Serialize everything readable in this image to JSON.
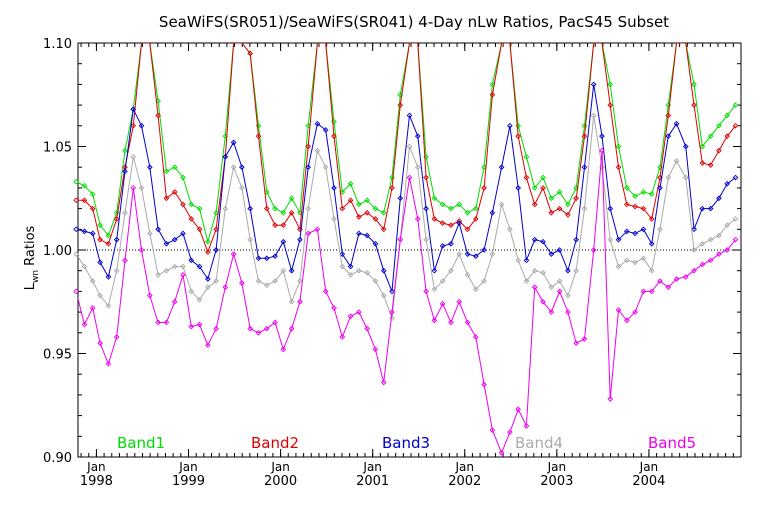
{
  "chart_data": {
    "type": "line",
    "title": "SeaWiFS(SR051)/SeaWiFS(SR041) 4-Day nLw Ratios, PacS45 Subset",
    "ylabel": "L",
    "ylabel_sub": "wn",
    "ylabel_rest": " Ratios",
    "xlabel": "",
    "xlim": [
      1997.8,
      2005.0
    ],
    "ylim": [
      0.9,
      1.1
    ],
    "y_ticks": [
      "0.90",
      "0.95",
      "1.00",
      "1.05",
      "1.10"
    ],
    "y_tick_values": [
      0.9,
      0.95,
      1.0,
      1.05,
      1.1
    ],
    "x_ticks": [
      {
        "month": "Jan",
        "year": "1998",
        "value": 1998.0
      },
      {
        "month": "Jan",
        "year": "1999",
        "value": 1999.0
      },
      {
        "month": "Jan",
        "year": "2000",
        "value": 2000.0
      },
      {
        "month": "Jan",
        "year": "2001",
        "value": 2001.0
      },
      {
        "month": "Jan",
        "year": "2002",
        "value": 2002.0
      },
      {
        "month": "Jan",
        "year": "2003",
        "value": 2003.0
      },
      {
        "month": "Jan",
        "year": "2004",
        "value": 2004.0
      }
    ],
    "reference_line": 1.0,
    "grid": false,
    "legend_placement": "bottom",
    "series": [
      {
        "name": "Band1",
        "color": "#00dd00",
        "x": [
          1997.78,
          1997.87,
          1997.96,
          1998.04,
          1998.13,
          1998.22,
          1998.31,
          1998.4,
          1998.49,
          1998.58,
          1998.67,
          1998.76,
          1998.85,
          1998.94,
          1999.03,
          1999.12,
          1999.21,
          1999.3,
          1999.4,
          1999.49,
          1999.58,
          1999.67,
          1999.76,
          1999.85,
          1999.94,
          2000.03,
          2000.12,
          2000.21,
          2000.3,
          2000.4,
          2000.49,
          2000.58,
          2000.67,
          2000.76,
          2000.85,
          2000.94,
          2001.03,
          2001.12,
          2001.21,
          2001.3,
          2001.4,
          2001.49,
          2001.58,
          2001.67,
          2001.76,
          2001.85,
          2001.94,
          2002.03,
          2002.12,
          2002.21,
          2002.3,
          2002.4,
          2002.49,
          2002.58,
          2002.67,
          2002.76,
          2002.85,
          2002.94,
          2003.03,
          2003.12,
          2003.21,
          2003.3,
          2003.4,
          2003.49,
          2003.58,
          2003.67,
          2003.76,
          2003.85,
          2003.94,
          2004.03,
          2004.12,
          2004.21,
          2004.3,
          2004.4,
          2004.49,
          2004.58,
          2004.67,
          2004.76,
          2004.85,
          2004.94
        ],
        "values": [
          1.033,
          1.031,
          1.027,
          1.012,
          1.007,
          1.018,
          1.048,
          1.068,
          1.1,
          1.1,
          1.072,
          1.038,
          1.04,
          1.035,
          1.022,
          1.02,
          1.004,
          1.018,
          1.055,
          1.1,
          1.1,
          1.095,
          1.06,
          1.028,
          1.02,
          1.018,
          1.025,
          1.018,
          1.06,
          1.1,
          1.1,
          1.062,
          1.028,
          1.032,
          1.022,
          1.024,
          1.02,
          1.018,
          1.035,
          1.075,
          1.1,
          1.1,
          1.045,
          1.025,
          1.022,
          1.02,
          1.022,
          1.018,
          1.02,
          1.04,
          1.08,
          1.1,
          1.1,
          1.06,
          1.045,
          1.03,
          1.035,
          1.025,
          1.028,
          1.022,
          1.03,
          1.06,
          1.1,
          1.1,
          1.08,
          1.05,
          1.03,
          1.026,
          1.028,
          1.027,
          1.04,
          1.07,
          1.1,
          1.1,
          1.08,
          1.05,
          1.055,
          1.06,
          1.065,
          1.07
        ]
      },
      {
        "name": "Band2",
        "color": "#dd0000",
        "x": [
          1997.78,
          1997.87,
          1997.96,
          1998.04,
          1998.13,
          1998.22,
          1998.31,
          1998.4,
          1998.49,
          1998.58,
          1998.67,
          1998.76,
          1998.85,
          1998.94,
          1999.03,
          1999.12,
          1999.21,
          1999.3,
          1999.4,
          1999.49,
          1999.58,
          1999.67,
          1999.76,
          1999.85,
          1999.94,
          2000.03,
          2000.12,
          2000.21,
          2000.3,
          2000.4,
          2000.49,
          2000.58,
          2000.67,
          2000.76,
          2000.85,
          2000.94,
          2001.03,
          2001.12,
          2001.21,
          2001.3,
          2001.4,
          2001.49,
          2001.58,
          2001.67,
          2001.76,
          2001.85,
          2001.94,
          2002.03,
          2002.12,
          2002.21,
          2002.3,
          2002.4,
          2002.49,
          2002.58,
          2002.67,
          2002.76,
          2002.85,
          2002.94,
          2003.03,
          2003.12,
          2003.21,
          2003.3,
          2003.4,
          2003.49,
          2003.58,
          2003.67,
          2003.76,
          2003.85,
          2003.94,
          2004.03,
          2004.12,
          2004.21,
          2004.3,
          2004.4,
          2004.49,
          2004.58,
          2004.67,
          2004.76,
          2004.85,
          2004.94
        ],
        "values": [
          1.024,
          1.024,
          1.02,
          1.005,
          1.003,
          1.015,
          1.04,
          1.06,
          1.1,
          1.1,
          1.065,
          1.025,
          1.028,
          1.022,
          1.015,
          1.01,
          0.999,
          1.01,
          1.045,
          1.1,
          1.1,
          1.095,
          1.055,
          1.02,
          1.012,
          1.012,
          1.018,
          1.01,
          1.05,
          1.1,
          1.1,
          1.055,
          1.02,
          1.024,
          1.016,
          1.018,
          1.015,
          1.01,
          1.03,
          1.07,
          1.1,
          1.1,
          1.035,
          1.015,
          1.013,
          1.012,
          1.014,
          1.01,
          1.015,
          1.03,
          1.075,
          1.1,
          1.1,
          1.055,
          1.035,
          1.022,
          1.03,
          1.018,
          1.02,
          1.017,
          1.025,
          1.055,
          1.1,
          1.1,
          1.07,
          1.04,
          1.022,
          1.021,
          1.02,
          1.015,
          1.035,
          1.065,
          1.1,
          1.1,
          1.07,
          1.042,
          1.041,
          1.048,
          1.055,
          1.06
        ]
      },
      {
        "name": "Band3",
        "color": "#0000cc",
        "x": [
          1997.78,
          1997.87,
          1997.96,
          1998.04,
          1998.13,
          1998.22,
          1998.31,
          1998.4,
          1998.49,
          1998.58,
          1998.67,
          1998.76,
          1998.85,
          1998.94,
          1999.03,
          1999.12,
          1999.21,
          1999.3,
          1999.4,
          1999.49,
          1999.58,
          1999.67,
          1999.76,
          1999.85,
          1999.94,
          2000.03,
          2000.12,
          2000.21,
          2000.3,
          2000.4,
          2000.49,
          2000.58,
          2000.67,
          2000.76,
          2000.85,
          2000.94,
          2001.03,
          2001.12,
          2001.21,
          2001.3,
          2001.4,
          2001.49,
          2001.58,
          2001.67,
          2001.76,
          2001.85,
          2001.94,
          2002.03,
          2002.12,
          2002.21,
          2002.3,
          2002.4,
          2002.49,
          2002.58,
          2002.67,
          2002.76,
          2002.85,
          2002.94,
          2003.03,
          2003.12,
          2003.21,
          2003.3,
          2003.4,
          2003.49,
          2003.58,
          2003.67,
          2003.76,
          2003.85,
          2003.94,
          2004.03,
          2004.12,
          2004.21,
          2004.3,
          2004.4,
          2004.49,
          2004.58,
          2004.67,
          2004.76,
          2004.85,
          2004.94
        ],
        "values": [
          1.01,
          1.009,
          1.008,
          0.994,
          0.987,
          1.005,
          1.038,
          1.068,
          1.06,
          1.04,
          1.01,
          1.003,
          1.005,
          1.008,
          0.995,
          0.992,
          0.986,
          1.0,
          1.045,
          1.052,
          1.04,
          1.02,
          0.996,
          0.996,
          0.997,
          1.004,
          0.99,
          1.005,
          1.04,
          1.061,
          1.058,
          1.03,
          0.998,
          0.992,
          1.008,
          1.007,
          1.003,
          0.99,
          0.98,
          1.025,
          1.065,
          1.055,
          1.02,
          0.99,
          1.002,
          1.003,
          1.013,
          0.998,
          0.997,
          1.0,
          1.018,
          1.04,
          1.06,
          1.03,
          0.995,
          1.005,
          1.004,
          0.998,
          1.0,
          0.99,
          1.005,
          1.04,
          1.08,
          1.055,
          1.02,
          1.005,
          1.009,
          1.008,
          1.01,
          1.003,
          1.03,
          1.055,
          1.061,
          1.05,
          1.01,
          1.02,
          1.02,
          1.025,
          1.032,
          1.035
        ]
      },
      {
        "name": "Band4",
        "color": "#aaaaaa",
        "x": [
          1997.78,
          1997.87,
          1997.96,
          1998.04,
          1998.13,
          1998.22,
          1998.31,
          1998.4,
          1998.49,
          1998.58,
          1998.67,
          1998.76,
          1998.85,
          1998.94,
          1999.03,
          1999.12,
          1999.21,
          1999.3,
          1999.4,
          1999.49,
          1999.58,
          1999.67,
          1999.76,
          1999.85,
          1999.94,
          2000.03,
          2000.12,
          2000.21,
          2000.3,
          2000.4,
          2000.49,
          2000.58,
          2000.67,
          2000.76,
          2000.85,
          2000.94,
          2001.03,
          2001.12,
          2001.21,
          2001.3,
          2001.4,
          2001.49,
          2001.58,
          2001.67,
          2001.76,
          2001.85,
          2001.94,
          2002.03,
          2002.12,
          2002.21,
          2002.3,
          2002.4,
          2002.49,
          2002.58,
          2002.67,
          2002.76,
          2002.85,
          2002.94,
          2003.03,
          2003.12,
          2003.21,
          2003.3,
          2003.4,
          2003.49,
          2003.58,
          2003.67,
          2003.76,
          2003.85,
          2003.94,
          2004.03,
          2004.12,
          2004.21,
          2004.3,
          2004.4,
          2004.49,
          2004.58,
          2004.67,
          2004.76,
          2004.85,
          2004.94
        ],
        "values": [
          0.998,
          0.992,
          0.985,
          0.978,
          0.973,
          0.99,
          1.018,
          1.045,
          1.03,
          1.008,
          0.988,
          0.99,
          0.992,
          0.992,
          0.98,
          0.976,
          0.982,
          0.985,
          1.02,
          1.04,
          1.03,
          1.005,
          0.985,
          0.983,
          0.985,
          0.99,
          0.975,
          0.985,
          1.02,
          1.048,
          1.04,
          1.015,
          0.992,
          0.988,
          0.99,
          0.989,
          0.985,
          0.978,
          0.967,
          1.005,
          1.05,
          1.04,
          1.005,
          0.981,
          0.985,
          0.99,
          0.998,
          0.988,
          0.981,
          0.985,
          0.998,
          1.022,
          1.01,
          0.995,
          0.985,
          0.99,
          0.989,
          0.982,
          0.985,
          0.978,
          0.99,
          1.02,
          1.065,
          1.04,
          1.005,
          0.992,
          0.995,
          0.994,
          0.996,
          0.99,
          1.01,
          1.035,
          1.043,
          1.035,
          1.0,
          1.003,
          1.005,
          1.007,
          1.012,
          1.015
        ]
      },
      {
        "name": "Band5",
        "color": "#ee00ee",
        "x": [
          1997.78,
          1997.87,
          1997.96,
          1998.04,
          1998.13,
          1998.22,
          1998.31,
          1998.4,
          1998.49,
          1998.58,
          1998.67,
          1998.76,
          1998.85,
          1998.94,
          1999.03,
          1999.12,
          1999.21,
          1999.3,
          1999.4,
          1999.49,
          1999.58,
          1999.67,
          1999.76,
          1999.85,
          1999.94,
          2000.03,
          2000.12,
          2000.21,
          2000.3,
          2000.4,
          2000.49,
          2000.58,
          2000.67,
          2000.76,
          2000.85,
          2000.94,
          2001.03,
          2001.12,
          2001.21,
          2001.3,
          2001.4,
          2001.49,
          2001.58,
          2001.67,
          2001.76,
          2001.85,
          2001.94,
          2002.03,
          2002.12,
          2002.21,
          2002.3,
          2002.4,
          2002.49,
          2002.58,
          2002.67,
          2002.76,
          2002.85,
          2002.94,
          2003.03,
          2003.12,
          2003.21,
          2003.3,
          2003.4,
          2003.49,
          2003.58,
          2003.67,
          2003.76,
          2003.85,
          2003.94,
          2004.03,
          2004.12,
          2004.21,
          2004.3,
          2004.4,
          2004.49,
          2004.58,
          2004.67,
          2004.76,
          2004.85,
          2004.94
        ],
        "values": [
          0.98,
          0.964,
          0.972,
          0.955,
          0.945,
          0.958,
          0.995,
          1.03,
          1.0,
          0.978,
          0.965,
          0.965,
          0.975,
          0.988,
          0.963,
          0.964,
          0.954,
          0.962,
          0.982,
          0.998,
          0.984,
          0.962,
          0.96,
          0.962,
          0.965,
          0.952,
          0.962,
          0.975,
          1.008,
          1.01,
          0.98,
          0.972,
          0.958,
          0.968,
          0.97,
          0.962,
          0.952,
          0.936,
          0.97,
          1.005,
          1.035,
          1.015,
          0.98,
          0.966,
          0.974,
          0.965,
          0.975,
          0.965,
          0.958,
          0.935,
          0.913,
          0.902,
          0.912,
          0.923,
          0.915,
          0.982,
          0.975,
          0.97,
          0.98,
          0.97,
          0.955,
          0.957,
          1.0,
          1.048,
          0.928,
          0.971,
          0.966,
          0.97,
          0.98,
          0.98,
          0.985,
          0.982,
          0.986,
          0.987,
          0.99,
          0.993,
          0.995,
          0.998,
          1.0,
          1.005
        ]
      }
    ]
  }
}
